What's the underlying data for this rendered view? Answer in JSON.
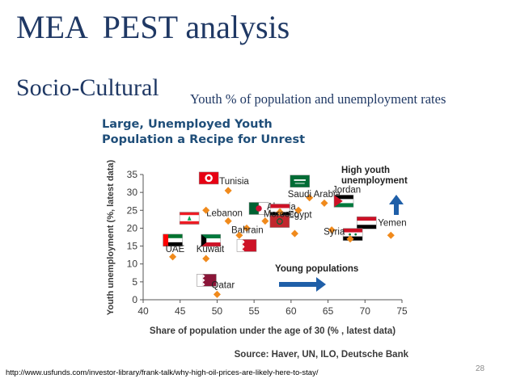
{
  "slide": {
    "title": "MEA  PEST analysis",
    "section": "Socio-Cultural",
    "subtitle": "Youth % of population and unemployment rates",
    "source_url": "http://www.usfunds.com/investor-library/frank-talk/why-high-oil-prices-are-likely-here-to-stay/",
    "page_number": "28"
  },
  "colors": {
    "title": "#1f3864",
    "chart_title": "#1f4e79",
    "marker": "#f08a1c",
    "arrow": "#1f5fa8",
    "axis_text": "#3a3a3a"
  },
  "chart_data": {
    "type": "scatter",
    "title": [
      "Large, Unemployed Youth",
      "Population a Recipe for Unrest"
    ],
    "xlabel": "Share of population under the age of 30 (% , latest data)",
    "ylabel": "Youth unemployment (%, latest data)",
    "xlim": [
      40,
      75
    ],
    "ylim": [
      0,
      35
    ],
    "xticks": [
      40,
      45,
      50,
      55,
      60,
      65,
      70,
      75
    ],
    "yticks": [
      0,
      5,
      10,
      15,
      20,
      25,
      30,
      35
    ],
    "grid": false,
    "source": "Source: Haver, UN, ILO, Deutsche Bank",
    "points": [
      {
        "label": "Tunisia",
        "x": 51.5,
        "y": 30.5,
        "flag": "tunisia"
      },
      {
        "label": "Saudi Arabia",
        "x": 62.5,
        "y": 28.5,
        "flag": "saudi-arabia"
      },
      {
        "label": "Algeria",
        "x": 57.5,
        "y": 24.5,
        "flag": "algeria"
      },
      {
        "label": "Lebanon",
        "x": 51.5,
        "y": 22,
        "flag": "lebanon"
      },
      {
        "label": "Egypt",
        "x": 58.5,
        "y": 24.5,
        "flag": "egypt"
      },
      {
        "label": "Jordan",
        "x": 64.5,
        "y": 27,
        "flag": "jordan"
      },
      {
        "label": "Morocco",
        "x": 56.5,
        "y": 22,
        "flag": "morocco"
      },
      {
        "label": "Yemen",
        "x": 73.5,
        "y": 18,
        "flag": "yemen"
      },
      {
        "label": "Syria",
        "x": 65.5,
        "y": 19.5,
        "flag": "syria"
      },
      {
        "label": "Bahrain",
        "x": 54,
        "y": 20,
        "flag": "bahrain"
      },
      {
        "label": "UAE",
        "x": 44,
        "y": 12,
        "flag": "uae"
      },
      {
        "label": "Kuwait",
        "x": 48.5,
        "y": 11.5,
        "flag": "kuwait"
      },
      {
        "label": "Qatar",
        "x": 50,
        "y": 1.5,
        "flag": "qatar"
      },
      {
        "label": "",
        "x": 48.5,
        "y": 25,
        "flag": ""
      },
      {
        "label": "",
        "x": 53,
        "y": 18,
        "flag": ""
      },
      {
        "label": "",
        "x": 61,
        "y": 25,
        "flag": ""
      },
      {
        "label": "",
        "x": 60.5,
        "y": 18.5,
        "flag": ""
      },
      {
        "label": "",
        "x": 68,
        "y": 17,
        "flag": ""
      }
    ],
    "annotations": [
      {
        "text": [
          "High youth",
          "unemployment"
        ],
        "direction": "up"
      },
      {
        "text": [
          "Young populations"
        ],
        "direction": "right"
      }
    ]
  }
}
